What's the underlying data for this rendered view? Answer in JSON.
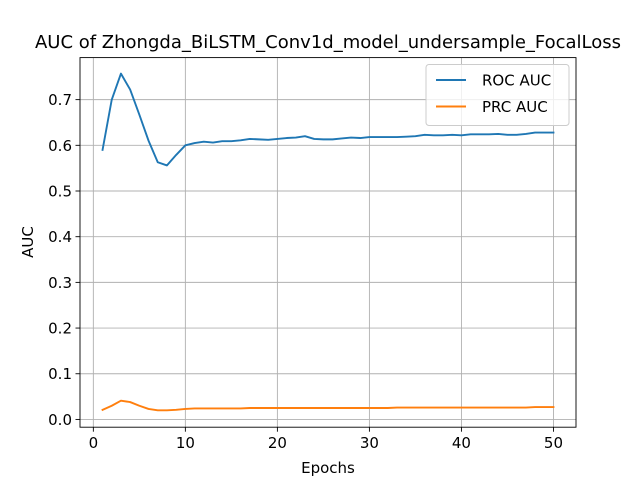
{
  "chart_data": {
    "type": "line",
    "title": "AUC of Zhongda_BiLSTM_Conv1d_model_undersample_FocalLoss",
    "xlabel": "Epochs",
    "ylabel": "AUC",
    "xlim": [
      -1.45,
      52.45
    ],
    "ylim": [
      -0.017,
      0.792
    ],
    "xticks": [
      0,
      10,
      20,
      30,
      40,
      50
    ],
    "yticks": [
      0.0,
      0.1,
      0.2,
      0.3,
      0.4,
      0.5,
      0.6,
      0.7
    ],
    "xtick_labels": [
      "0",
      "10",
      "20",
      "30",
      "40",
      "50"
    ],
    "ytick_labels": [
      "0.0",
      "0.1",
      "0.2",
      "0.3",
      "0.4",
      "0.5",
      "0.6",
      "0.7"
    ],
    "grid": true,
    "legend_position": "top-right",
    "x": [
      1,
      2,
      3,
      4,
      5,
      6,
      7,
      8,
      9,
      10,
      11,
      12,
      13,
      14,
      15,
      16,
      17,
      18,
      19,
      20,
      21,
      22,
      23,
      24,
      25,
      26,
      27,
      28,
      29,
      30,
      31,
      32,
      33,
      34,
      35,
      36,
      37,
      38,
      39,
      40,
      41,
      42,
      43,
      44,
      45,
      46,
      47,
      48,
      49,
      50
    ],
    "series": [
      {
        "name": "ROC AUC",
        "color": "#1f77b4",
        "values": [
          0.59,
          0.7,
          0.757,
          0.722,
          0.667,
          0.61,
          0.563,
          0.556,
          0.579,
          0.6,
          0.605,
          0.608,
          0.606,
          0.609,
          0.609,
          0.611,
          0.614,
          0.613,
          0.612,
          0.614,
          0.616,
          0.617,
          0.62,
          0.614,
          0.613,
          0.613,
          0.615,
          0.617,
          0.616,
          0.618,
          0.618,
          0.618,
          0.618,
          0.619,
          0.62,
          0.623,
          0.622,
          0.622,
          0.623,
          0.622,
          0.624,
          0.624,
          0.624,
          0.625,
          0.623,
          0.623,
          0.625,
          0.628,
          0.628,
          0.628
        ]
      },
      {
        "name": "PRC AUC",
        "color": "#ff7f0e",
        "values": [
          0.021,
          0.03,
          0.041,
          0.038,
          0.03,
          0.023,
          0.02,
          0.02,
          0.021,
          0.023,
          0.024,
          0.024,
          0.024,
          0.024,
          0.024,
          0.024,
          0.025,
          0.025,
          0.025,
          0.025,
          0.025,
          0.025,
          0.025,
          0.025,
          0.025,
          0.025,
          0.025,
          0.025,
          0.025,
          0.025,
          0.025,
          0.025,
          0.026,
          0.026,
          0.026,
          0.026,
          0.026,
          0.026,
          0.026,
          0.026,
          0.026,
          0.026,
          0.026,
          0.026,
          0.026,
          0.026,
          0.026,
          0.027,
          0.027,
          0.027
        ]
      }
    ]
  }
}
